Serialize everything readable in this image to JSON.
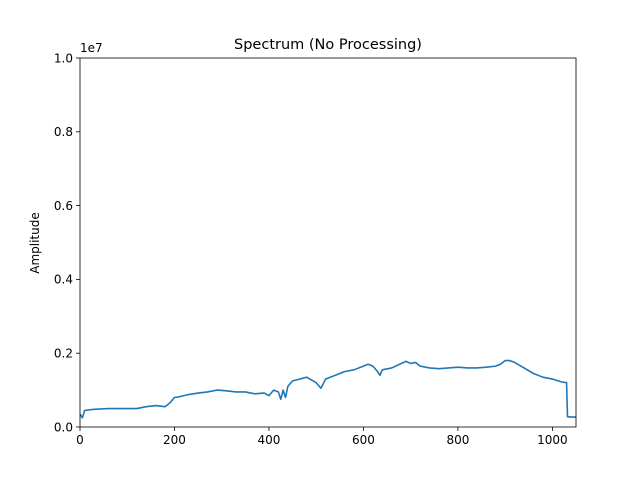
{
  "chart_data": {
    "type": "line",
    "title": "Spectrum (No Processing)",
    "xlabel": "",
    "ylabel": "Amplitude",
    "y_scale_label": "1e7",
    "xlim": [
      0,
      1050
    ],
    "ylim": [
      0,
      1.0
    ],
    "x_ticks": [
      0,
      200,
      400,
      600,
      800,
      1000
    ],
    "x_tick_labels": [
      "0",
      "200",
      "400",
      "600",
      "800",
      "1000"
    ],
    "y_ticks": [
      0.0,
      0.2,
      0.4,
      0.6,
      0.8,
      1.0
    ],
    "y_tick_labels": [
      "0.0",
      "0.2",
      "0.4",
      "0.6",
      "0.8",
      "1.0"
    ],
    "grid": false,
    "series": [
      {
        "color": "#1f77b4",
        "x": [
          0,
          5,
          10,
          30,
          60,
          90,
          120,
          140,
          160,
          180,
          190,
          200,
          210,
          230,
          250,
          270,
          290,
          310,
          330,
          350,
          370,
          390,
          400,
          410,
          420,
          425,
          430,
          435,
          440,
          450,
          460,
          480,
          500,
          510,
          520,
          540,
          560,
          580,
          600,
          610,
          620,
          630,
          635,
          640,
          660,
          680,
          690,
          700,
          710,
          720,
          740,
          760,
          780,
          800,
          820,
          840,
          860,
          880,
          890,
          900,
          910,
          920,
          940,
          960,
          980,
          1000,
          1020,
          1030,
          1032,
          1040,
          1050
        ],
        "y": [
          0.035,
          0.025,
          0.045,
          0.048,
          0.05,
          0.05,
          0.05,
          0.055,
          0.058,
          0.055,
          0.065,
          0.08,
          0.082,
          0.088,
          0.092,
          0.095,
          0.1,
          0.098,
          0.095,
          0.095,
          0.09,
          0.092,
          0.085,
          0.1,
          0.095,
          0.075,
          0.1,
          0.08,
          0.11,
          0.125,
          0.128,
          0.135,
          0.12,
          0.105,
          0.13,
          0.14,
          0.15,
          0.155,
          0.165,
          0.17,
          0.165,
          0.15,
          0.14,
          0.155,
          0.16,
          0.172,
          0.178,
          0.172,
          0.175,
          0.165,
          0.16,
          0.158,
          0.16,
          0.162,
          0.16,
          0.16,
          0.162,
          0.165,
          0.17,
          0.18,
          0.18,
          0.175,
          0.16,
          0.145,
          0.135,
          0.13,
          0.122,
          0.12,
          0.028,
          0.027,
          0.027
        ]
      }
    ]
  }
}
